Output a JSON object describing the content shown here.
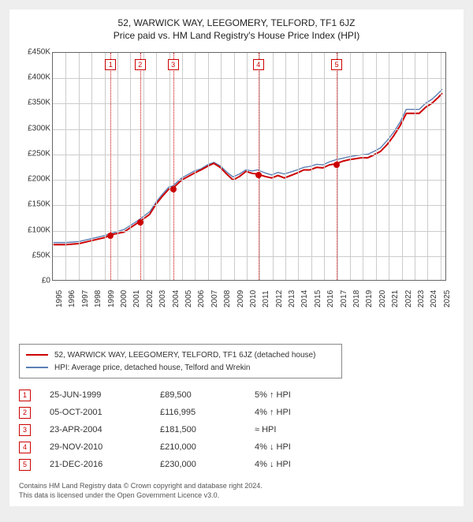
{
  "title_line1": "52, WARWICK WAY, LEEGOMERY, TELFORD, TF1 6JZ",
  "title_line2": "Price paid vs. HM Land Registry's House Price Index (HPI)",
  "chart": {
    "type": "line",
    "background_color": "#ffffff",
    "grid_color": "#cccccc",
    "border_color": "#666666",
    "x_start_year": 1995,
    "x_end_year": 2025.5,
    "x_tick_years": [
      1995,
      1996,
      1997,
      1998,
      1999,
      2000,
      2001,
      2002,
      2003,
      2004,
      2005,
      2006,
      2007,
      2008,
      2009,
      2010,
      2011,
      2012,
      2013,
      2014,
      2015,
      2016,
      2017,
      2018,
      2019,
      2020,
      2021,
      2022,
      2023,
      2024,
      2025
    ],
    "y_min": 0,
    "y_max": 450000,
    "y_ticks": [
      {
        "value": 0,
        "label": "£0"
      },
      {
        "value": 50000,
        "label": "£50K"
      },
      {
        "value": 100000,
        "label": "£100K"
      },
      {
        "value": 150000,
        "label": "£150K"
      },
      {
        "value": 200000,
        "label": "£200K"
      },
      {
        "value": 250000,
        "label": "£250K"
      },
      {
        "value": 300000,
        "label": "£300K"
      },
      {
        "value": 350000,
        "label": "£350K"
      },
      {
        "value": 400000,
        "label": "£400K"
      },
      {
        "value": 450000,
        "label": "£450K"
      }
    ],
    "series": [
      {
        "id": "price_paid",
        "label": "52, WARWICK WAY, LEEGOMERY, TELFORD, TF1 6JZ (detached house)",
        "color": "#cc0000",
        "line_width": 2,
        "points": [
          [
            1995.0,
            70000
          ],
          [
            1996.0,
            70000
          ],
          [
            1997.0,
            72000
          ],
          [
            1998.0,
            78000
          ],
          [
            1999.0,
            84000
          ],
          [
            1999.5,
            89500
          ],
          [
            2000.5,
            95000
          ],
          [
            2001.5,
            112000
          ],
          [
            2001.8,
            116995
          ],
          [
            2002.5,
            130000
          ],
          [
            2003.0,
            150000
          ],
          [
            2003.5,
            166000
          ],
          [
            2004.0,
            180000
          ],
          [
            2004.3,
            181500
          ],
          [
            2005.0,
            198000
          ],
          [
            2006.0,
            212000
          ],
          [
            2006.5,
            218000
          ],
          [
            2007.0,
            225000
          ],
          [
            2007.5,
            231000
          ],
          [
            2008.0,
            223000
          ],
          [
            2008.5,
            210000
          ],
          [
            2009.0,
            198000
          ],
          [
            2009.5,
            205000
          ],
          [
            2010.0,
            215000
          ],
          [
            2010.5,
            211000
          ],
          [
            2010.9,
            210000
          ],
          [
            2011.5,
            205000
          ],
          [
            2012.0,
            202000
          ],
          [
            2012.5,
            207000
          ],
          [
            2013.0,
            202000
          ],
          [
            2013.5,
            207000
          ],
          [
            2014.0,
            212000
          ],
          [
            2014.5,
            218000
          ],
          [
            2015.0,
            218000
          ],
          [
            2015.5,
            223000
          ],
          [
            2016.0,
            222000
          ],
          [
            2016.5,
            228000
          ],
          [
            2017.0,
            230000
          ],
          [
            2017.5,
            235000
          ],
          [
            2018.0,
            238000
          ],
          [
            2018.5,
            240000
          ],
          [
            2019.0,
            242000
          ],
          [
            2019.5,
            242000
          ],
          [
            2020.0,
            248000
          ],
          [
            2020.5,
            255000
          ],
          [
            2021.0,
            268000
          ],
          [
            2021.5,
            285000
          ],
          [
            2022.0,
            305000
          ],
          [
            2022.5,
            330000
          ],
          [
            2023.0,
            330000
          ],
          [
            2023.5,
            330000
          ],
          [
            2024.0,
            342000
          ],
          [
            2024.5,
            350000
          ],
          [
            2025.0,
            362000
          ],
          [
            2025.3,
            370000
          ]
        ]
      },
      {
        "id": "hpi",
        "label": "HPI: Average price, detached house, Telford and Wrekin",
        "color": "#5b7fb4",
        "line_width": 1.4,
        "points": [
          [
            1995.0,
            74000
          ],
          [
            1996.0,
            74000
          ],
          [
            1997.0,
            76000
          ],
          [
            1998.0,
            82000
          ],
          [
            1999.0,
            88000
          ],
          [
            1999.5,
            92000
          ],
          [
            2000.5,
            100000
          ],
          [
            2001.5,
            116000
          ],
          [
            2002.5,
            135000
          ],
          [
            2003.0,
            154000
          ],
          [
            2003.5,
            170000
          ],
          [
            2004.0,
            184000
          ],
          [
            2004.3,
            186000
          ],
          [
            2005.0,
            202000
          ],
          [
            2006.0,
            216000
          ],
          [
            2006.5,
            220000
          ],
          [
            2007.0,
            228000
          ],
          [
            2007.5,
            233000
          ],
          [
            2008.0,
            226000
          ],
          [
            2008.5,
            214000
          ],
          [
            2009.0,
            204000
          ],
          [
            2009.5,
            210000
          ],
          [
            2010.0,
            218000
          ],
          [
            2010.5,
            216000
          ],
          [
            2010.9,
            218000
          ],
          [
            2011.5,
            212000
          ],
          [
            2012.0,
            208000
          ],
          [
            2012.5,
            213000
          ],
          [
            2013.0,
            210000
          ],
          [
            2013.5,
            214000
          ],
          [
            2014.0,
            218000
          ],
          [
            2014.5,
            223000
          ],
          [
            2015.0,
            225000
          ],
          [
            2015.5,
            229000
          ],
          [
            2016.0,
            228000
          ],
          [
            2016.5,
            234000
          ],
          [
            2017.0,
            238000
          ],
          [
            2017.5,
            241000
          ],
          [
            2018.0,
            244000
          ],
          [
            2018.5,
            246000
          ],
          [
            2019.0,
            248000
          ],
          [
            2019.5,
            249000
          ],
          [
            2020.0,
            255000
          ],
          [
            2020.5,
            262000
          ],
          [
            2021.0,
            276000
          ],
          [
            2021.5,
            292000
          ],
          [
            2022.0,
            312000
          ],
          [
            2022.5,
            338000
          ],
          [
            2023.0,
            338000
          ],
          [
            2023.5,
            338000
          ],
          [
            2024.0,
            350000
          ],
          [
            2024.5,
            358000
          ],
          [
            2025.0,
            370000
          ],
          [
            2025.3,
            378000
          ]
        ]
      }
    ],
    "sale_markers": [
      {
        "n": 1,
        "year": 1999.48,
        "value": 89500
      },
      {
        "n": 2,
        "year": 2001.76,
        "value": 116995
      },
      {
        "n": 3,
        "year": 2004.31,
        "value": 181500
      },
      {
        "n": 4,
        "year": 2010.91,
        "value": 210000
      },
      {
        "n": 5,
        "year": 2016.97,
        "value": 230000
      }
    ]
  },
  "legend_header_colors": {
    "price_paid": "#cc0000",
    "hpi": "#5b7fb4"
  },
  "sales_rows": [
    {
      "n": 1,
      "date": "25-JUN-1999",
      "price": "£89,500",
      "diff": "5% ↑ HPI"
    },
    {
      "n": 2,
      "date": "05-OCT-2001",
      "price": "£116,995",
      "diff": "4% ↑ HPI"
    },
    {
      "n": 3,
      "date": "23-APR-2004",
      "price": "£181,500",
      "diff": "≈ HPI"
    },
    {
      "n": 4,
      "date": "29-NOV-2010",
      "price": "£210,000",
      "diff": "4% ↓ HPI"
    },
    {
      "n": 5,
      "date": "21-DEC-2016",
      "price": "£230,000",
      "diff": "4% ↓ HPI"
    }
  ],
  "footer_line1": "Contains HM Land Registry data © Crown copyright and database right 2024.",
  "footer_line2": "This data is licensed under the Open Government Licence v3.0."
}
